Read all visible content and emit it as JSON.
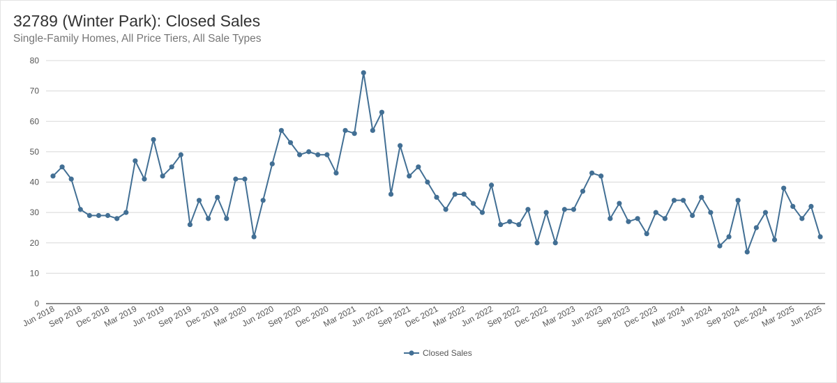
{
  "title": "32789 (Winter Park): Closed Sales",
  "subtitle": "Single-Family Homes, All Price Tiers, All Sale Types",
  "chart_data": {
    "type": "line",
    "title": "32789 (Winter Park): Closed Sales",
    "subtitle": "Single-Family Homes, All Price Tiers, All Sale Types",
    "xlabel": "",
    "ylabel": "",
    "ylim": [
      0,
      80
    ],
    "yticks": [
      "0",
      "10",
      "20",
      "30",
      "40",
      "50",
      "60",
      "70",
      "80"
    ],
    "grid": true,
    "legend_position": "bottom",
    "color": "#426f94",
    "x_start": "Jun 2018",
    "x_end": "Jun 2025",
    "xtick_labels": [
      "Jun 2018",
      "Sep 2018",
      "Dec 2018",
      "Mar 2019",
      "Jun 2019",
      "Sep 2019",
      "Dec 2019",
      "Mar 2020",
      "Jun 2020",
      "Sep 2020",
      "Dec 2020",
      "Mar 2021",
      "Jun 2021",
      "Sep 2021",
      "Dec 2021",
      "Mar 2022",
      "Jun 2022",
      "Sep 2022",
      "Dec 2022",
      "Mar 2023",
      "Jun 2023",
      "Sep 2023",
      "Dec 2023",
      "Mar 2024",
      "Jun 2024",
      "Sep 2024",
      "Dec 2024",
      "Mar 2025",
      "Jun 2025"
    ],
    "series": [
      {
        "name": "Closed Sales",
        "values": [
          42,
          45,
          41,
          31,
          29,
          29,
          29,
          28,
          30,
          47,
          41,
          54,
          42,
          45,
          49,
          26,
          34,
          28,
          35,
          28,
          41,
          41,
          22,
          34,
          46,
          57,
          53,
          49,
          50,
          49,
          49,
          43,
          57,
          56,
          76,
          57,
          63,
          36,
          52,
          42,
          45,
          40,
          35,
          31,
          36,
          36,
          33,
          30,
          39,
          26,
          27,
          26,
          31,
          20,
          30,
          20,
          31,
          31,
          37,
          43,
          42,
          28,
          33,
          27,
          28,
          23,
          30,
          28,
          34,
          34,
          29,
          35,
          30,
          19,
          22,
          34,
          17,
          25,
          30,
          21,
          38,
          32,
          28,
          32,
          22
        ]
      }
    ]
  }
}
